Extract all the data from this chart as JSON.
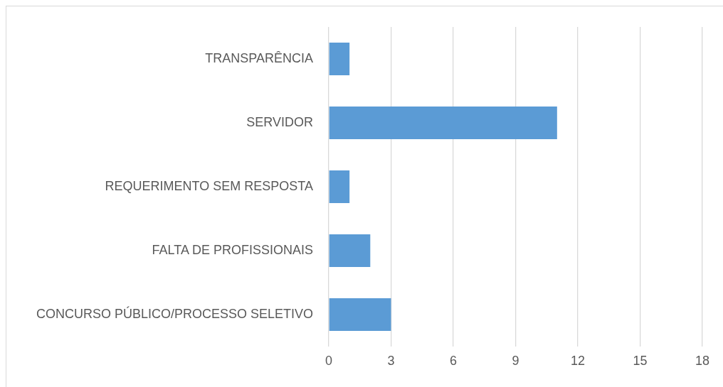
{
  "chart_data": {
    "type": "bar",
    "orientation": "horizontal",
    "categories": [
      "TRANSPARÊNCIA",
      "SERVIDOR",
      "REQUERIMENTO SEM RESPOSTA",
      "FALTA DE PROFISSIONAIS",
      "CONCURSO PÚBLICO/PROCESSO SELETIVO"
    ],
    "values": [
      1,
      11,
      1,
      2,
      3
    ],
    "color": "#5b9bd5",
    "xlim": [
      0,
      18
    ],
    "xticks": [
      0,
      3,
      6,
      9,
      12,
      15,
      18
    ],
    "grid": "x",
    "legend": false
  }
}
